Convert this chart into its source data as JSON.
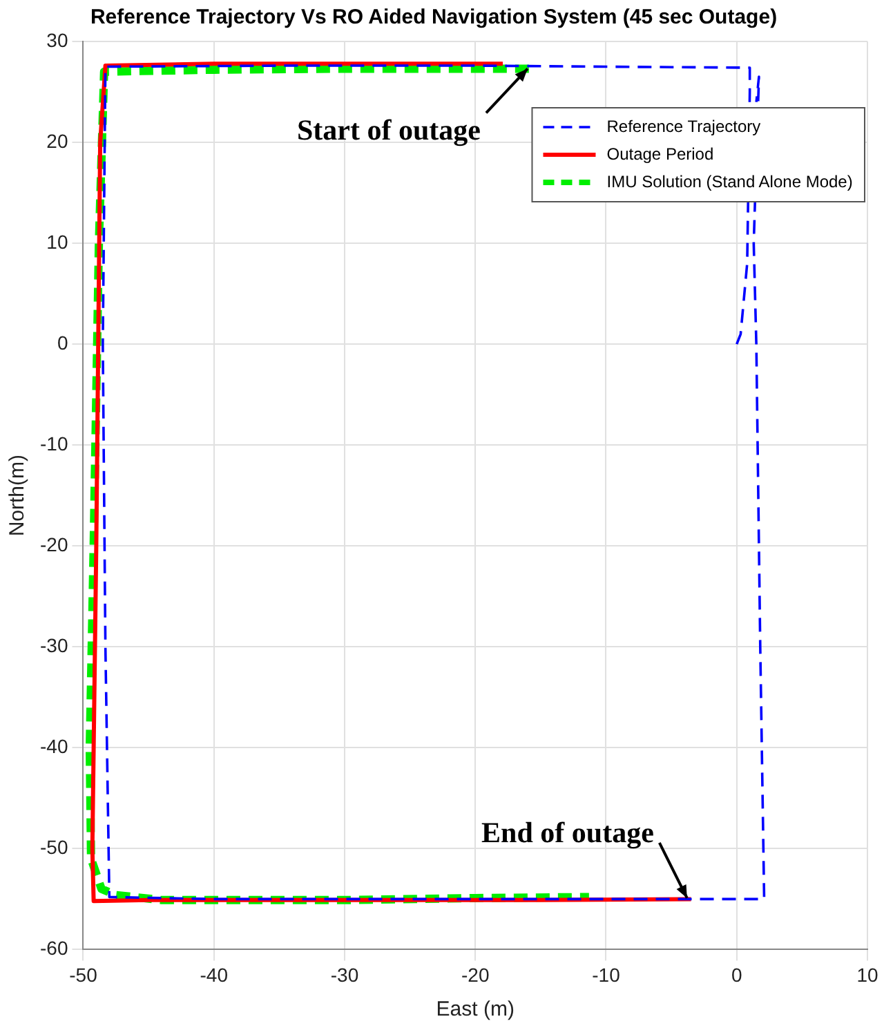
{
  "chart_data": {
    "type": "line",
    "title": "Reference Trajectory Vs RO Aided Navigation System (45 sec Outage)",
    "xlabel": "East (m)",
    "ylabel": "North(m)",
    "xlim": [
      -50,
      10
    ],
    "xticks": [
      -50,
      -40,
      -30,
      -20,
      -10,
      0,
      10
    ],
    "ylim": [
      -60,
      30
    ],
    "yticks": [
      -60,
      -50,
      -40,
      -30,
      -20,
      -10,
      0,
      10,
      20,
      30
    ],
    "grid": true,
    "legend": "top right",
    "marker": "none",
    "series": [
      {
        "name": "Reference Trajectory",
        "color": "#0000ff",
        "line_style": "dashed",
        "x": [
          0,
          0.3,
          0.8,
          1,
          1,
          -10,
          -20,
          -35,
          -48.3,
          -48.5,
          -48.3,
          -48,
          -40,
          -30,
          -4,
          2.1,
          1.8,
          1.5,
          1.3,
          1.7,
          1.5
        ],
        "values": [
          0,
          1,
          8,
          25,
          27.4,
          27.5,
          27.6,
          27.6,
          27.5,
          0,
          -30,
          -54.8,
          -55,
          -55,
          -55,
          -55,
          -30,
          0,
          10,
          26.5,
          24
        ]
      },
      {
        "name": "Outage Period",
        "color": "#ff0000",
        "line_style": "solid",
        "x": [
          -17.9,
          -30,
          -40,
          -48.3,
          -48.7,
          -49,
          -49.3,
          -49.2,
          -45,
          -30,
          -15,
          -3.5
        ],
        "values": [
          27.8,
          27.8,
          27.8,
          27.6,
          20,
          -20,
          -50,
          -55.2,
          -55.1,
          -55.1,
          -55.1,
          -55
        ]
      },
      {
        "name": "IMU Solution (Stand Alone Mode)",
        "color": "#00ee00",
        "line_style": "dashed",
        "x": [
          -15.9,
          -30,
          -40,
          -48.4,
          -48.8,
          -49.2,
          -49.5,
          -49.4,
          -48.6,
          -47.5,
          -44,
          -30,
          -20,
          -11.3
        ],
        "values": [
          27.3,
          27.3,
          27.2,
          27,
          10,
          -20,
          -40,
          -51,
          -54,
          -54.6,
          -55.1,
          -55.1,
          -54.9,
          -54.8
        ]
      }
    ],
    "annotations": [
      {
        "text": "Start of outage",
        "x": -16,
        "y": 27.3
      },
      {
        "text": "End of outage",
        "x": -3.8,
        "y": -54.9
      }
    ]
  }
}
